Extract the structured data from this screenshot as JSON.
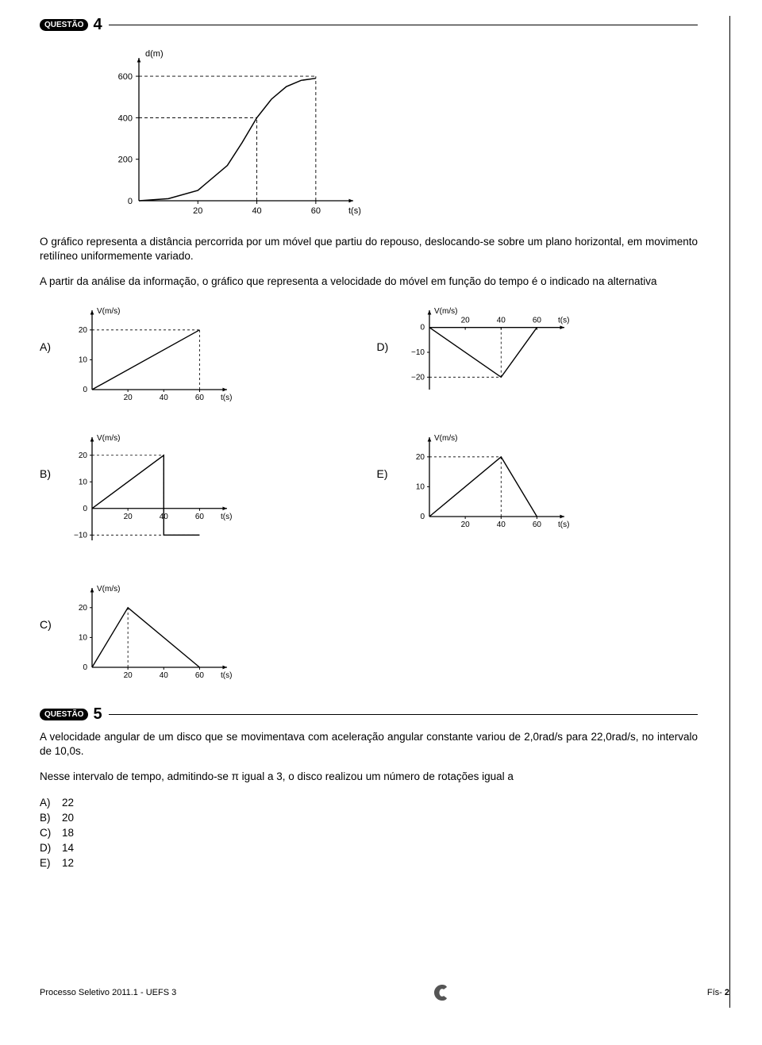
{
  "q4": {
    "badge": "QUESTÃO",
    "number": "4",
    "mainChart": {
      "ylabel": "d(m)",
      "xlabel": "t(s)",
      "yticks": [
        "0",
        "200",
        "400",
        "600"
      ],
      "xticks": [
        "20",
        "40",
        "60"
      ],
      "ylim": [
        0,
        650
      ],
      "xlim": [
        0,
        70
      ],
      "axis_color": "#000000",
      "dash_color": "#000000",
      "curve_points": [
        [
          0,
          0
        ],
        [
          10,
          10
        ],
        [
          20,
          50
        ],
        [
          30,
          170
        ],
        [
          35,
          280
        ],
        [
          40,
          400
        ],
        [
          45,
          490
        ],
        [
          50,
          550
        ],
        [
          55,
          580
        ],
        [
          60,
          590
        ]
      ],
      "dash_lines": [
        {
          "from": [
            0,
            400
          ],
          "to": [
            40,
            400
          ]
        },
        {
          "from": [
            40,
            0
          ],
          "to": [
            40,
            400
          ]
        },
        {
          "from": [
            0,
            600
          ],
          "to": [
            60,
            600
          ]
        },
        {
          "from": [
            60,
            0
          ],
          "to": [
            60,
            600
          ]
        }
      ],
      "stroke_width": 1.5
    },
    "text1": "O gráfico representa a distância percorrida por um móvel que partiu do repouso, deslocando-se sobre um plano horizontal, em movimento retilíneo uniformemente variado.",
    "text2": "A partir da análise da informação, o gráfico que representa a velocidade do móvel em função do tempo é o indicado na alternativa",
    "options": {
      "A": {
        "ylabel": "V(m/s)",
        "xlabel": "t(s)",
        "yticks": [
          {
            "v": 0,
            "l": "0"
          },
          {
            "v": 10,
            "l": "10"
          },
          {
            "v": 20,
            "l": "20"
          }
        ],
        "xticks": [
          {
            "v": 20,
            "l": "20"
          },
          {
            "v": 40,
            "l": "40"
          },
          {
            "v": 60,
            "l": "60"
          }
        ],
        "yrange": [
          0,
          25
        ],
        "xrange": [
          0,
          70
        ],
        "line": [
          [
            0,
            0
          ],
          [
            60,
            20
          ]
        ],
        "dash": [
          {
            "from": [
              0,
              20
            ],
            "to": [
              60,
              20
            ]
          },
          {
            "from": [
              60,
              0
            ],
            "to": [
              60,
              20
            ]
          }
        ]
      },
      "B": {
        "ylabel": "V(m/s)",
        "xlabel": "t(s)",
        "yticks": [
          {
            "v": -10,
            "l": "−10"
          },
          {
            "v": 0,
            "l": "0"
          },
          {
            "v": 10,
            "l": "10"
          },
          {
            "v": 20,
            "l": "20"
          }
        ],
        "xticks": [
          {
            "v": 20,
            "l": "20"
          },
          {
            "v": 40,
            "l": "40"
          },
          {
            "v": 60,
            "l": "60"
          }
        ],
        "yrange": [
          -12,
          25
        ],
        "xrange": [
          0,
          70
        ],
        "line": [
          [
            0,
            0
          ],
          [
            40,
            20
          ],
          [
            40,
            -10
          ],
          [
            60,
            -10
          ]
        ],
        "dash": [
          {
            "from": [
              0,
              20
            ],
            "to": [
              40,
              20
            ]
          },
          {
            "from": [
              40,
              0
            ],
            "to": [
              40,
              20
            ]
          },
          {
            "from": [
              0,
              -10
            ],
            "to": [
              60,
              -10
            ]
          }
        ]
      },
      "C": {
        "ylabel": "V(m/s)",
        "xlabel": "t(s)",
        "yticks": [
          {
            "v": 0,
            "l": "0"
          },
          {
            "v": 10,
            "l": "10"
          },
          {
            "v": 20,
            "l": "20"
          }
        ],
        "xticks": [
          {
            "v": 20,
            "l": "20"
          },
          {
            "v": 40,
            "l": "40"
          },
          {
            "v": 60,
            "l": "60"
          }
        ],
        "yrange": [
          0,
          25
        ],
        "xrange": [
          0,
          70
        ],
        "line": [
          [
            0,
            0
          ],
          [
            20,
            20
          ],
          [
            60,
            0
          ]
        ],
        "dash": [
          {
            "from": [
              20,
              0
            ],
            "to": [
              20,
              20
            ]
          }
        ]
      },
      "D": {
        "ylabel": "V(m/s)",
        "xlabel": "t(s)",
        "yticks": [
          {
            "v": -20,
            "l": "−20"
          },
          {
            "v": -10,
            "l": "−10"
          },
          {
            "v": 0,
            "l": "0"
          }
        ],
        "xticks": [
          {
            "v": 20,
            "l": "20"
          },
          {
            "v": 40,
            "l": "40"
          },
          {
            "v": 60,
            "l": "60"
          }
        ],
        "yrange": [
          -25,
          5
        ],
        "xrange": [
          0,
          70
        ],
        "line": [
          [
            0,
            0
          ],
          [
            40,
            -20
          ],
          [
            60,
            0
          ]
        ],
        "dash": [
          {
            "from": [
              0,
              -20
            ],
            "to": [
              40,
              -20
            ]
          },
          {
            "from": [
              40,
              0
            ],
            "to": [
              40,
              -20
            ]
          }
        ]
      },
      "E": {
        "ylabel": "V(m/s)",
        "xlabel": "t(s)",
        "yticks": [
          {
            "v": 0,
            "l": "0"
          },
          {
            "v": 10,
            "l": "10"
          },
          {
            "v": 20,
            "l": "20"
          }
        ],
        "xticks": [
          {
            "v": 20,
            "l": "20"
          },
          {
            "v": 40,
            "l": "40"
          },
          {
            "v": 60,
            "l": "60"
          }
        ],
        "yrange": [
          0,
          25
        ],
        "xrange": [
          0,
          70
        ],
        "line": [
          [
            0,
            0
          ],
          [
            40,
            20
          ],
          [
            60,
            0
          ]
        ],
        "dash": [
          {
            "from": [
              0,
              20
            ],
            "to": [
              40,
              20
            ]
          },
          {
            "from": [
              40,
              0
            ],
            "to": [
              40,
              20
            ]
          }
        ]
      }
    }
  },
  "q5": {
    "badge": "QUESTÃO",
    "number": "5",
    "text1": "A velocidade angular de um disco que se movimentava com aceleração angular constante variou de 2,0rad/s para 22,0rad/s, no intervalo de 10,0s.",
    "text2": "Nesse intervalo de tempo, admitindo-se π igual a 3, o disco realizou um número de rotações igual a",
    "answers": [
      {
        "l": "A)",
        "v": "22"
      },
      {
        "l": "B)",
        "v": "20"
      },
      {
        "l": "C)",
        "v": "18"
      },
      {
        "l": "D)",
        "v": "14"
      },
      {
        "l": "E)",
        "v": "12"
      }
    ]
  },
  "footer": {
    "left": "Processo Seletivo 2011.1 - UEFS 3",
    "right_prefix": "Fís-",
    "right_num": "2"
  },
  "style": {
    "axis_color": "#000000",
    "line_color": "#000000",
    "font_small": 10,
    "font_label": 11
  }
}
